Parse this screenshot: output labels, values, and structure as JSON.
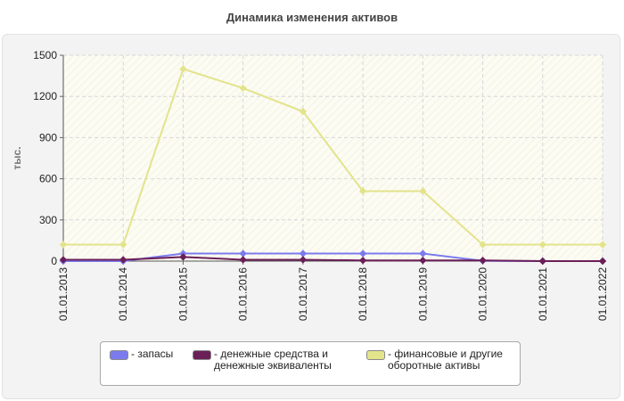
{
  "chart_data": {
    "type": "line",
    "title": "Динамика изменения активов",
    "ylabel": "тыс.",
    "xlabel": "",
    "ylim": [
      0,
      1500
    ],
    "yticks": [
      0,
      300,
      600,
      900,
      1200,
      1500
    ],
    "categories": [
      "01.01.2013",
      "01.01.2014",
      "01.01.2015",
      "01.01.2016",
      "01.01.2017",
      "01.01.2018",
      "01.01.2019",
      "01.01.2020",
      "01.01.2021",
      "01.01.2022"
    ],
    "series": [
      {
        "name": "- запасы",
        "color": "#7b7bee",
        "values": [
          0,
          0,
          55,
          55,
          55,
          55,
          55,
          2,
          0,
          0
        ]
      },
      {
        "name": "- денежные средства и\nденежные эквиваленты",
        "color": "#6b1f57",
        "values": [
          10,
          10,
          30,
          10,
          10,
          5,
          5,
          5,
          0,
          0
        ]
      },
      {
        "name": "- финансовые и другие\nоборотные активы",
        "color": "#e3e38c",
        "values": [
          120,
          120,
          1400,
          1260,
          1090,
          510,
          510,
          120,
          120,
          120
        ]
      }
    ],
    "grid": true,
    "legend_position": "bottom"
  }
}
